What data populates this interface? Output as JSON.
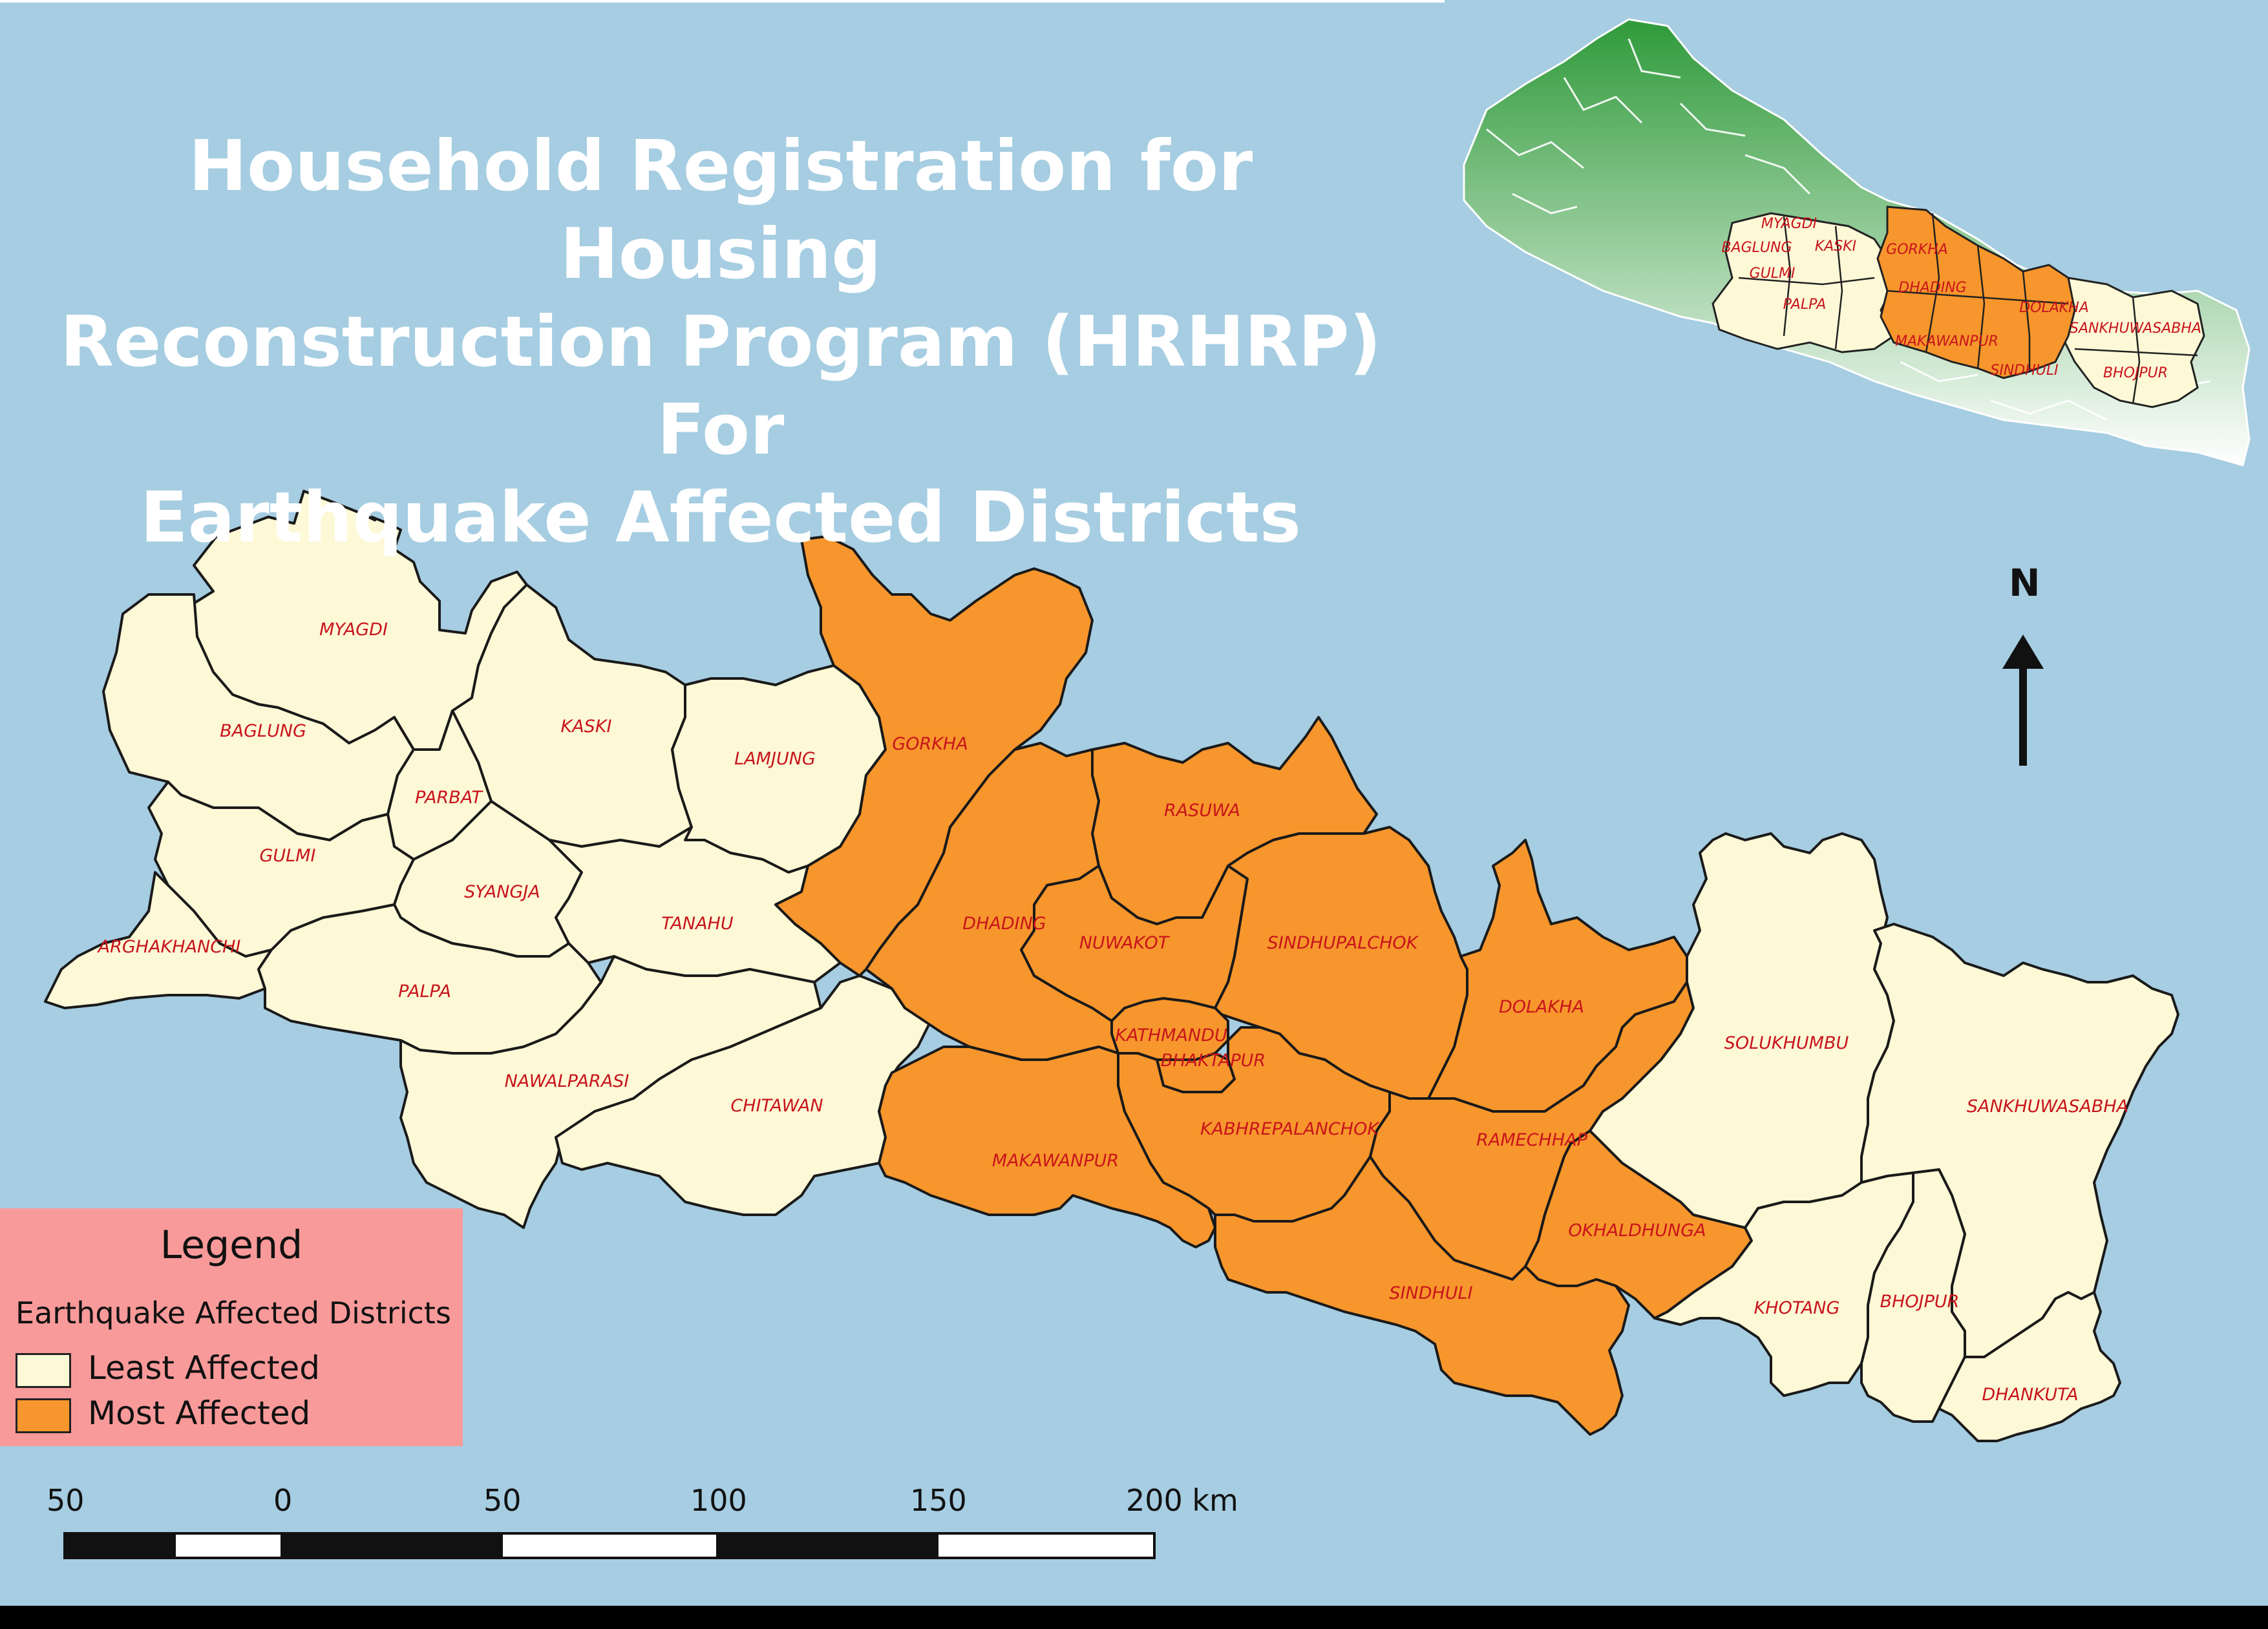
{
  "title_lines": [
    "Household Registration for Housing",
    "Reconstruction Program (HRHRP) For",
    "Earthquake Affected Districts"
  ],
  "colors": {
    "sea": "#a6cde2",
    "least": "#fdf8d6",
    "most": "#f7962c",
    "label": "#c8141c",
    "legend_bg": "#f99a9a"
  },
  "legend": {
    "title": "Legend",
    "subtitle": "Earthquake Affected Districts",
    "items": [
      {
        "label": "Least Affected",
        "category": "least"
      },
      {
        "label": "Most Affected",
        "category": "most"
      }
    ]
  },
  "north_label": "N",
  "scale_bar": {
    "ticks": [
      "50",
      "0",
      "50",
      "100",
      "150",
      "200 km"
    ]
  },
  "districts": [
    {
      "name": "MYAGDI",
      "category": "least"
    },
    {
      "name": "BAGLUNG",
      "category": "least"
    },
    {
      "name": "KASKI",
      "category": "least"
    },
    {
      "name": "LAMJUNG",
      "category": "least"
    },
    {
      "name": "PARBAT",
      "category": "least"
    },
    {
      "name": "GULMI",
      "category": "least"
    },
    {
      "name": "SYANGJA",
      "category": "least"
    },
    {
      "name": "TANAHU",
      "category": "least"
    },
    {
      "name": "ARGHAKHANCHI",
      "category": "least"
    },
    {
      "name": "PALPA",
      "category": "least"
    },
    {
      "name": "NAWALPARASI",
      "category": "least"
    },
    {
      "name": "CHITAWAN",
      "category": "least"
    },
    {
      "name": "GORKHA",
      "category": "most"
    },
    {
      "name": "RASUWA",
      "category": "most"
    },
    {
      "name": "DHADING",
      "category": "most"
    },
    {
      "name": "NUWAKOT",
      "category": "most"
    },
    {
      "name": "SINDHUPALCHOK",
      "category": "most"
    },
    {
      "name": "DOLAKHA",
      "category": "most"
    },
    {
      "name": "KATHMANDU",
      "category": "most"
    },
    {
      "name": "BHAKTAPUR",
      "category": "most"
    },
    {
      "name": "MAKAWANPUR",
      "category": "most"
    },
    {
      "name": "KABHREPALANCHOK",
      "category": "most"
    },
    {
      "name": "RAMECHHAP",
      "category": "most"
    },
    {
      "name": "OKHALDHUNGA",
      "category": "most"
    },
    {
      "name": "SINDHULI",
      "category": "most"
    },
    {
      "name": "SOLUKHUMBU",
      "category": "least"
    },
    {
      "name": "SANKHUWASABHA",
      "category": "least"
    },
    {
      "name": "KHOTANG",
      "category": "least"
    },
    {
      "name": "BHOJPUR",
      "category": "least"
    },
    {
      "name": "DHANKUTA",
      "category": "least"
    }
  ],
  "inset_labels": [
    "MYAGDI",
    "BAGLUNG",
    "KASKI",
    "GULMI",
    "PALPA",
    "GORKHA",
    "DHADING",
    "DOLAKHA",
    "SANKHUWASABHA",
    "MAKAWANPUR",
    "SINDHULI",
    "BHOJPUR"
  ]
}
